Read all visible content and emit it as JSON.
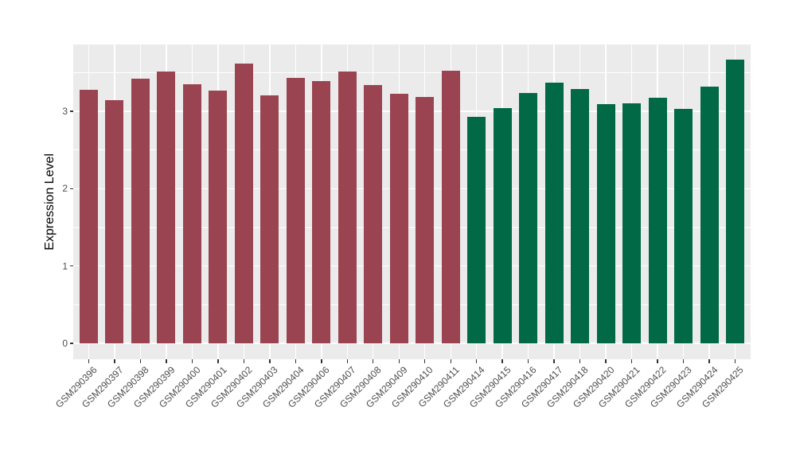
{
  "chart_data": {
    "type": "bar",
    "title": "",
    "xlabel": "",
    "ylabel": "Expression Level",
    "ylim": [
      0,
      3.87
    ],
    "y_ticks": [
      0,
      1,
      2,
      3
    ],
    "y_minor_ticks": [
      0.5,
      1.5,
      2.5,
      3.5
    ],
    "grid": "on",
    "legend_position": "none",
    "panel_background": "#EBEBEB",
    "gridline_color": "#ffffff",
    "axis_text_color": "#4d4d4d",
    "tick_mark_color": "#333333",
    "categories": [
      "GSM290396",
      "GSM290397",
      "GSM290398",
      "GSM290399",
      "GSM290400",
      "GSM290401",
      "GSM290402",
      "GSM290403",
      "GSM290404",
      "GSM290406",
      "GSM290407",
      "GSM290408",
      "GSM290409",
      "GSM290410",
      "GSM290411",
      "GSM290414",
      "GSM290415",
      "GSM290416",
      "GSM290417",
      "GSM290418",
      "GSM290420",
      "GSM290421",
      "GSM290422",
      "GSM290423",
      "GSM290424",
      "GSM290425"
    ],
    "values": [
      3.28,
      3.14,
      3.42,
      3.51,
      3.35,
      3.27,
      3.62,
      3.21,
      3.43,
      3.39,
      3.52,
      3.34,
      3.23,
      3.19,
      3.53,
      2.93,
      3.04,
      3.24,
      3.37,
      3.29,
      3.09,
      3.1,
      3.18,
      3.03,
      3.32,
      3.67
    ],
    "groups": [
      "a",
      "a",
      "a",
      "a",
      "a",
      "a",
      "a",
      "a",
      "a",
      "a",
      "a",
      "a",
      "a",
      "a",
      "a",
      "b",
      "b",
      "b",
      "b",
      "b",
      "b",
      "b",
      "b",
      "b",
      "b",
      "b"
    ],
    "group_colors": {
      "a": "#9B4451",
      "b": "#016946"
    }
  }
}
